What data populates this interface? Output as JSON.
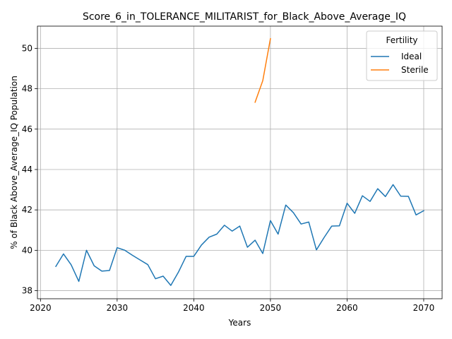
{
  "chart_data": {
    "type": "line",
    "title": "Score_6_in_TOLERANCE_MILITARIST_for_Black_Above_Average_IQ",
    "xlabel": "Years",
    "ylabel": "% of Black Above_Average_IQ Population",
    "xlim": [
      2019.6,
      2072.4
    ],
    "ylim": [
      37.6,
      51.1
    ],
    "xticks": [
      2020,
      2030,
      2040,
      2050,
      2060,
      2070
    ],
    "yticks": [
      38,
      40,
      42,
      44,
      46,
      48,
      50
    ],
    "grid": true,
    "legend": {
      "title": "Fertility",
      "placement": "top-right"
    },
    "series": [
      {
        "name": "Ideal",
        "color": "#1f77b4",
        "x": [
          2022,
          2023,
          2024,
          2025,
          2026,
          2027,
          2028,
          2029,
          2030,
          2031,
          2032,
          2033,
          2034,
          2035,
          2036,
          2037,
          2038,
          2039,
          2040,
          2041,
          2042,
          2043,
          2044,
          2045,
          2046,
          2047,
          2048,
          2049,
          2050,
          2051,
          2052,
          2053,
          2054,
          2055,
          2056,
          2057,
          2058,
          2059,
          2060,
          2061,
          2062,
          2063,
          2064,
          2065,
          2066,
          2067,
          2068,
          2069,
          2070
        ],
        "y": [
          39.2,
          39.82,
          39.28,
          38.46,
          40.0,
          39.23,
          38.97,
          39.0,
          40.13,
          40.0,
          39.75,
          39.52,
          39.29,
          38.59,
          38.72,
          38.26,
          38.92,
          39.7,
          39.7,
          40.26,
          40.65,
          40.8,
          41.24,
          40.95,
          41.2,
          40.15,
          40.5,
          39.84,
          41.47,
          40.8,
          42.24,
          41.86,
          41.3,
          41.4,
          40.02,
          40.63,
          41.2,
          41.21,
          42.33,
          41.83,
          42.7,
          42.42,
          43.05,
          42.66,
          43.25,
          42.68,
          42.67,
          41.75,
          41.96
        ]
      },
      {
        "name": "Sterile",
        "color": "#ff7f0e",
        "x": [
          2048,
          2049,
          2050
        ],
        "y": [
          47.33,
          48.4,
          50.48
        ]
      }
    ]
  }
}
